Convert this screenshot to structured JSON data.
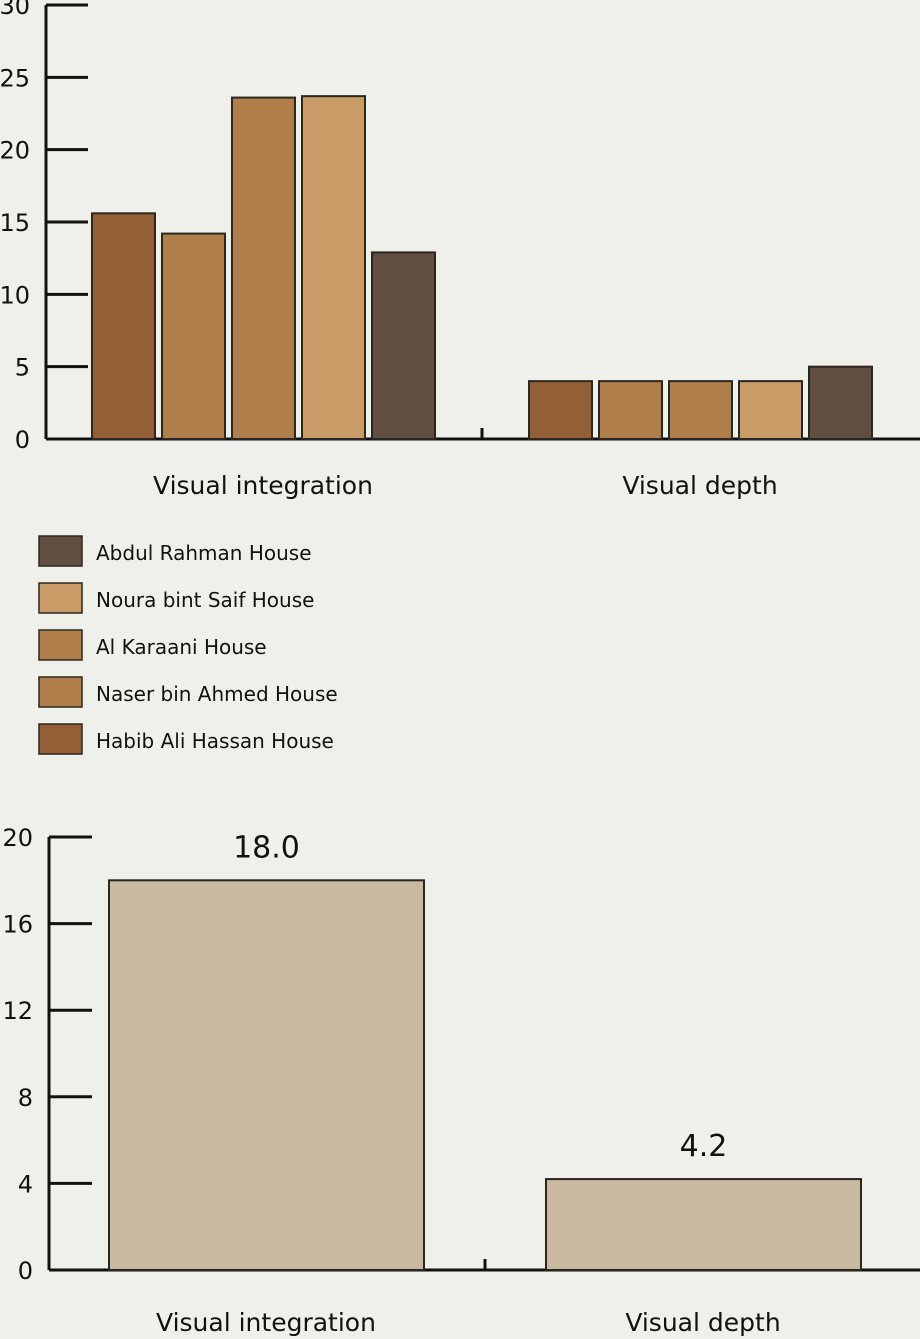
{
  "chart_data": [
    {
      "type": "bar",
      "categories": [
        "Visual integration",
        "Visual depth"
      ],
      "series": [
        {
          "name": "Habib Ali Hassan House",
          "color": "#935f37",
          "values": [
            15.6,
            4.0
          ]
        },
        {
          "name": "Naser bin Ahmed House",
          "color": "#b07e4a",
          "values": [
            14.2,
            4.0
          ]
        },
        {
          "name": "Al Karaani House",
          "color": "#b07e4a",
          "values": [
            23.6,
            4.0
          ]
        },
        {
          "name": "Noura bint Saif House",
          "color": "#c99c67",
          "values": [
            23.7,
            4.0
          ]
        },
        {
          "name": "Abdul Rahman House",
          "color": "#614e41",
          "values": [
            12.9,
            5.0
          ]
        }
      ],
      "legend_order": [
        "Abdul Rahman House",
        "Noura bint Saif House",
        "Al Karaani House",
        "Naser bin Ahmed House",
        "Habib Ali Hassan House"
      ],
      "yticks": [
        "0",
        "5",
        "10",
        "15",
        "20",
        "25",
        "30"
      ],
      "ylim": [
        0,
        30
      ],
      "legend_position": "bottom-left",
      "grid": false
    },
    {
      "type": "bar",
      "categories": [
        "Visual integration",
        "Visual depth"
      ],
      "values": [
        18.0,
        4.2
      ],
      "data_labels": [
        "18.0",
        "4.2"
      ],
      "color": "#c9b9a0",
      "yticks": [
        "0",
        "4",
        "8",
        "12",
        "16",
        "20"
      ],
      "ylim": [
        0,
        20
      ],
      "grid": false
    }
  ]
}
